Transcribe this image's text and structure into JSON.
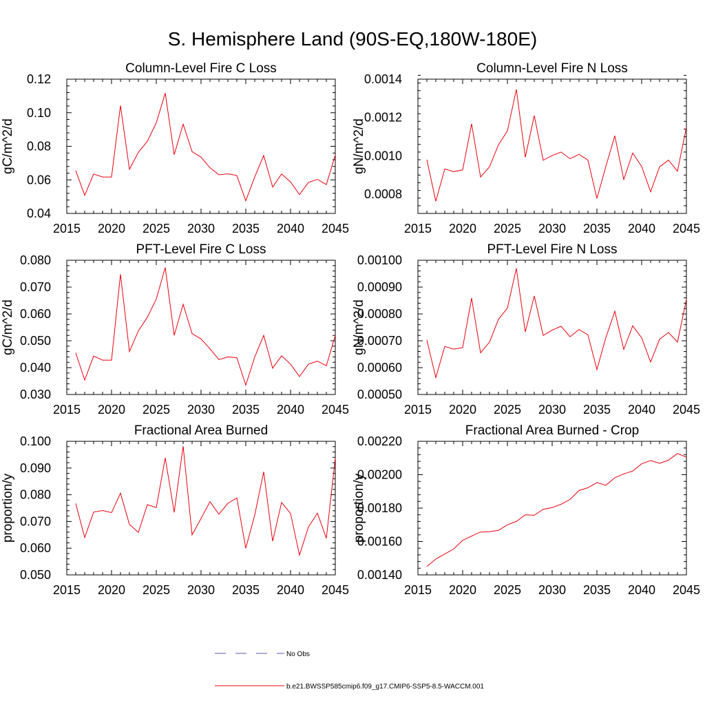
{
  "figure": {
    "title": "S. Hemisphere Land (90S-EQ,180W-180E)"
  },
  "legend": {
    "entries": [
      {
        "label": "No Obs",
        "color": "#5a5aa8",
        "style": "dashed"
      },
      {
        "label": "b.e21.BWSSP585cmip6.f09_g17.CMIP6-SSP5-8.5-WACCM.001",
        "color": "#e8000b",
        "style": "solid"
      }
    ]
  },
  "chart_data": [
    {
      "type": "line",
      "title": "Column-Level Fire C Loss",
      "ylabel": "gC/m^2/d",
      "xlabel": "",
      "xlim": [
        2015,
        2045
      ],
      "ylim": [
        0.04,
        0.12
      ],
      "xticks": [
        2015,
        2020,
        2025,
        2030,
        2035,
        2040,
        2045
      ],
      "xtick_labels": [
        "2015",
        "2020",
        "2025",
        "2030",
        "2035",
        "2040",
        "2045"
      ],
      "yticks": [
        0.04,
        0.06,
        0.08,
        0.1,
        0.12
      ],
      "ytick_labels": [
        "0.04",
        "0.06",
        "0.08",
        "0.10",
        "0.12"
      ],
      "x": [
        2016,
        2017,
        2018,
        2019,
        2020,
        2021,
        2022,
        2023,
        2024,
        2025,
        2026,
        2027,
        2028,
        2029,
        2030,
        2031,
        2032,
        2033,
        2034,
        2035,
        2036,
        2037,
        2038,
        2039,
        2040,
        2041,
        2042,
        2043,
        2044,
        2045
      ],
      "series": [
        {
          "name": "b.e21.BWSSP585cmip6.f09_g17.CMIP6-SSP5-8.5-WACCM.001",
          "color": "#e8000b",
          "values": [
            0.0655,
            0.0508,
            0.0635,
            0.0617,
            0.0617,
            0.1043,
            0.0663,
            0.0764,
            0.083,
            0.094,
            0.1117,
            0.075,
            0.0932,
            0.0768,
            0.0735,
            0.0672,
            0.063,
            0.0636,
            0.0626,
            0.0475,
            0.0618,
            0.0745,
            0.0557,
            0.0635,
            0.0588,
            0.0512,
            0.0585,
            0.0603,
            0.0572,
            0.0748
          ]
        }
      ]
    },
    {
      "type": "line",
      "title": "Column-Level Fire N Loss",
      "ylabel": "gN/m^2/d",
      "xlabel": "",
      "xlim": [
        2015,
        2045
      ],
      "ylim": [
        0.0007,
        0.0014
      ],
      "xticks": [
        2015,
        2020,
        2025,
        2030,
        2035,
        2040,
        2045
      ],
      "xtick_labels": [
        "2015",
        "2020",
        "2025",
        "2030",
        "2035",
        "2040",
        "2045"
      ],
      "yticks": [
        0.0008,
        0.001,
        0.0012,
        0.0014
      ],
      "ytick_labels": [
        "0.0008",
        "0.0010",
        "0.0012",
        "0.0014"
      ],
      "x": [
        2016,
        2017,
        2018,
        2019,
        2020,
        2021,
        2022,
        2023,
        2024,
        2025,
        2026,
        2027,
        2028,
        2029,
        2030,
        2031,
        2032,
        2033,
        2034,
        2035,
        2036,
        2037,
        2038,
        2039,
        2040,
        2041,
        2042,
        2043,
        2044,
        2045
      ],
      "series": [
        {
          "name": "b.e21.BWSSP585cmip6.f09_g17.CMIP6-SSP5-8.5-WACCM.001",
          "color": "#e8000b",
          "values": [
            0.00098,
            0.000763,
            0.000932,
            0.000918,
            0.000927,
            0.001167,
            0.00089,
            0.000943,
            0.001058,
            0.00113,
            0.001347,
            0.000993,
            0.00121,
            0.000977,
            0.001002,
            0.00102,
            0.000985,
            0.001008,
            0.000978,
            0.000778,
            0.000945,
            0.001105,
            0.000877,
            0.001015,
            0.000945,
            0.000813,
            0.000943,
            0.000978,
            0.00092,
            0.00115
          ]
        }
      ]
    },
    {
      "type": "line",
      "title": "PFT-Level Fire C Loss",
      "ylabel": "gC/m^2/d",
      "xlabel": "",
      "xlim": [
        2015,
        2045
      ],
      "ylim": [
        0.03,
        0.08
      ],
      "xticks": [
        2015,
        2020,
        2025,
        2030,
        2035,
        2040,
        2045
      ],
      "xtick_labels": [
        "2015",
        "2020",
        "2025",
        "2030",
        "2035",
        "2040",
        "2045"
      ],
      "yticks": [
        0.03,
        0.04,
        0.05,
        0.06,
        0.07,
        0.08
      ],
      "ytick_labels": [
        "0.030",
        "0.040",
        "0.050",
        "0.060",
        "0.070",
        "0.080"
      ],
      "x": [
        2016,
        2017,
        2018,
        2019,
        2020,
        2021,
        2022,
        2023,
        2024,
        2025,
        2026,
        2027,
        2028,
        2029,
        2030,
        2031,
        2032,
        2033,
        2034,
        2035,
        2036,
        2037,
        2038,
        2039,
        2040,
        2041,
        2042,
        2043,
        2044,
        2045
      ],
      "series": [
        {
          "name": "b.e21.BWSSP585cmip6.f09_g17.CMIP6-SSP5-8.5-WACCM.001",
          "color": "#e8000b",
          "values": [
            0.0455,
            0.0354,
            0.0443,
            0.0428,
            0.0428,
            0.0748,
            0.046,
            0.0537,
            0.0588,
            0.0655,
            0.0773,
            0.052,
            0.0636,
            0.0527,
            0.0507,
            0.047,
            0.043,
            0.044,
            0.0437,
            0.0335,
            0.044,
            0.052,
            0.0398,
            0.0444,
            0.0413,
            0.0367,
            0.0413,
            0.0424,
            0.0407,
            0.052
          ]
        }
      ]
    },
    {
      "type": "line",
      "title": "PFT-Level Fire N Loss",
      "ylabel": "gN/m^2/d",
      "xlabel": "",
      "xlim": [
        2015,
        2045
      ],
      "ylim": [
        0.0005,
        0.001
      ],
      "xticks": [
        2015,
        2020,
        2025,
        2030,
        2035,
        2040,
        2045
      ],
      "xtick_labels": [
        "2015",
        "2020",
        "2025",
        "2030",
        "2035",
        "2040",
        "2045"
      ],
      "yticks": [
        0.0005,
        0.0006,
        0.0007,
        0.0008,
        0.0009,
        0.001
      ],
      "ytick_labels": [
        "0.00050",
        "0.00060",
        "0.00070",
        "0.00080",
        "0.00090",
        "0.00100"
      ],
      "x": [
        2016,
        2017,
        2018,
        2019,
        2020,
        2021,
        2022,
        2023,
        2024,
        2025,
        2026,
        2027,
        2028,
        2029,
        2030,
        2031,
        2032,
        2033,
        2034,
        2035,
        2036,
        2037,
        2038,
        2039,
        2040,
        2041,
        2042,
        2043,
        2044,
        2045
      ],
      "series": [
        {
          "name": "b.e21.BWSSP585cmip6.f09_g17.CMIP6-SSP5-8.5-WACCM.001",
          "color": "#e8000b",
          "values": [
            0.000703,
            0.000563,
            0.000679,
            0.000669,
            0.000675,
            0.000859,
            0.000655,
            0.000695,
            0.00078,
            0.000822,
            0.00097,
            0.000733,
            0.000867,
            0.00072,
            0.00074,
            0.000754,
            0.000715,
            0.000742,
            0.000722,
            0.000593,
            0.000712,
            0.00081,
            0.000668,
            0.000756,
            0.000711,
            0.000621,
            0.000706,
            0.000731,
            0.000695,
            0.000855
          ]
        }
      ]
    },
    {
      "type": "line",
      "title": "Fractional Area Burned",
      "ylabel": "proportion/y",
      "xlabel": "",
      "xlim": [
        2015,
        2045
      ],
      "ylim": [
        0.05,
        0.1
      ],
      "xticks": [
        2015,
        2020,
        2025,
        2030,
        2035,
        2040,
        2045
      ],
      "xtick_labels": [
        "2015",
        "2020",
        "2025",
        "2030",
        "2035",
        "2040",
        "2045"
      ],
      "yticks": [
        0.05,
        0.06,
        0.07,
        0.08,
        0.09,
        0.1
      ],
      "ytick_labels": [
        "0.050",
        "0.060",
        "0.070",
        "0.080",
        "0.090",
        "0.100"
      ],
      "x": [
        2016,
        2017,
        2018,
        2019,
        2020,
        2021,
        2022,
        2023,
        2024,
        2025,
        2026,
        2027,
        2028,
        2029,
        2030,
        2031,
        2032,
        2033,
        2034,
        2035,
        2036,
        2037,
        2038,
        2039,
        2040,
        2041,
        2042,
        2043,
        2044,
        2045
      ],
      "series": [
        {
          "name": "b.e21.BWSSP585cmip6.f09_g17.CMIP6-SSP5-8.5-WACCM.001",
          "color": "#e8000b",
          "values": [
            0.0767,
            0.064,
            0.0735,
            0.0741,
            0.0733,
            0.0806,
            0.0689,
            0.0659,
            0.0763,
            0.0752,
            0.0938,
            0.0734,
            0.0982,
            0.065,
            0.0711,
            0.0774,
            0.0727,
            0.0768,
            0.0788,
            0.06,
            0.0724,
            0.0886,
            0.0626,
            0.0771,
            0.073,
            0.0574,
            0.0679,
            0.0731,
            0.0637,
            0.0938
          ]
        }
      ]
    },
    {
      "type": "line",
      "title": "Fractional Area Burned - Crop",
      "ylabel": "proportion/y",
      "xlabel": "",
      "xlim": [
        2015,
        2045
      ],
      "ylim": [
        0.0014,
        0.0022
      ],
      "xticks": [
        2015,
        2020,
        2025,
        2030,
        2035,
        2040,
        2045
      ],
      "xtick_labels": [
        "2015",
        "2020",
        "2025",
        "2030",
        "2035",
        "2040",
        "2045"
      ],
      "yticks": [
        0.0014,
        0.0016,
        0.0018,
        0.002,
        0.0022
      ],
      "ytick_labels": [
        "0.00140",
        "0.00160",
        "0.00180",
        "0.00200",
        "0.00220"
      ],
      "x": [
        2016,
        2017,
        2018,
        2019,
        2020,
        2021,
        2022,
        2023,
        2024,
        2025,
        2026,
        2027,
        2028,
        2029,
        2030,
        2031,
        2032,
        2033,
        2034,
        2035,
        2036,
        2037,
        2038,
        2039,
        2040,
        2041,
        2042,
        2043,
        2044,
        2045
      ],
      "series": [
        {
          "name": "b.e21.BWSSP585cmip6.f09_g17.CMIP6-SSP5-8.5-WACCM.001",
          "color": "#e8000b",
          "values": [
            0.00145,
            0.001495,
            0.001525,
            0.001555,
            0.001607,
            0.001632,
            0.001657,
            0.001658,
            0.001667,
            0.0017,
            0.00172,
            0.00176,
            0.001757,
            0.001793,
            0.001803,
            0.001823,
            0.001852,
            0.001905,
            0.001922,
            0.001953,
            0.001937,
            0.001982,
            0.002005,
            0.002022,
            0.002065,
            0.002085,
            0.002068,
            0.002087,
            0.002127,
            0.002105
          ]
        }
      ]
    }
  ]
}
